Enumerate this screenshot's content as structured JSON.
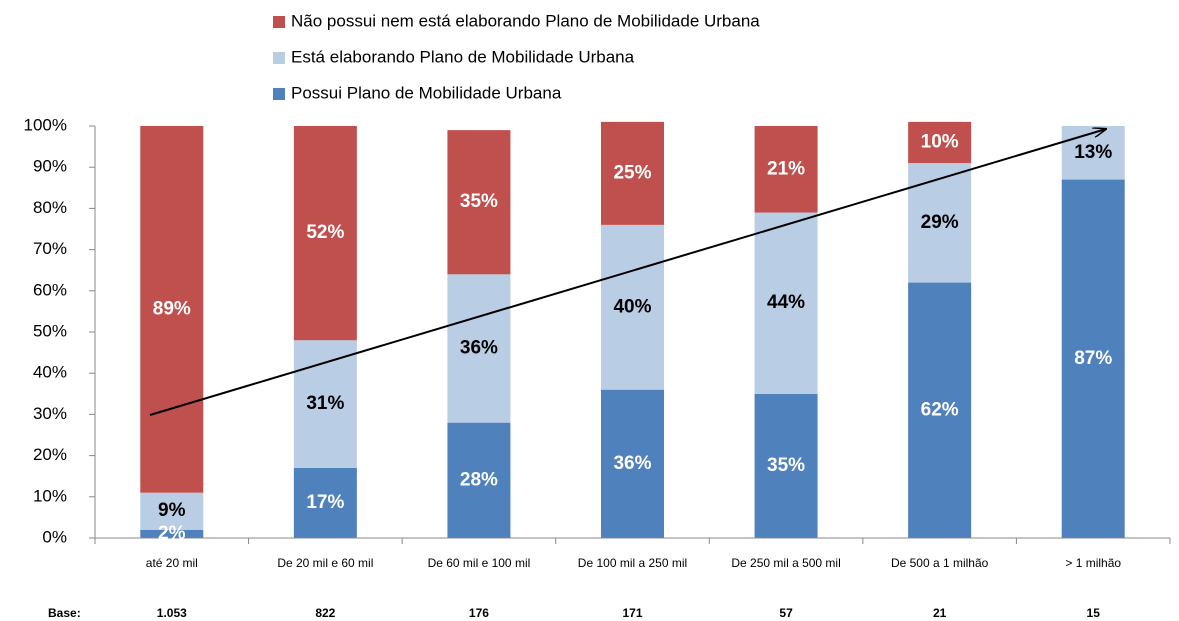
{
  "chart_data": {
    "type": "stacked_bar",
    "categories": [
      "até 20 mil",
      "De 20 mil e 60 mil",
      "De 60 mil e 100 mil",
      "De 100 mil a 250 mil",
      "De 250 mil a 500 mil",
      "De 500 a 1 milhão",
      "> 1 milhão"
    ],
    "series": [
      {
        "name": "Possui Plano de Mobilidade Urbana",
        "color": "#4f81bd",
        "label_color": "#ffffff",
        "values": [
          2,
          17,
          28,
          36,
          35,
          62,
          87
        ],
        "value_labels": [
          "2%",
          "17%",
          "28%",
          "36%",
          "35%",
          "62%",
          "87%"
        ]
      },
      {
        "name": "Está elaborando Plano de Mobilidade Urbana",
        "color": "#b9cde5",
        "label_color": "#000000",
        "values": [
          9,
          31,
          36,
          40,
          44,
          29,
          13
        ],
        "value_labels": [
          "9%",
          "31%",
          "36%",
          "40%",
          "44%",
          "29%",
          "13%"
        ]
      },
      {
        "name": "Não possui nem está elaborando Plano de Mobilidade Urbana",
        "color": "#c0504d",
        "label_color": "#ffffff",
        "values": [
          89,
          52,
          35,
          25,
          21,
          10,
          null
        ],
        "value_labels": [
          "89%",
          "52%",
          "35%",
          "25%",
          "21%",
          "10%",
          null
        ]
      }
    ],
    "ylim": [
      0,
      100
    ],
    "yticks": [
      {
        "value": 0,
        "label": "0%"
      },
      {
        "value": 10,
        "label": "10%"
      },
      {
        "value": 20,
        "label": "20%"
      },
      {
        "value": 30,
        "label": "30%"
      },
      {
        "value": 40,
        "label": "40%"
      },
      {
        "value": 50,
        "label": "50%"
      },
      {
        "value": 60,
        "label": "60%"
      },
      {
        "value": 70,
        "label": "70%"
      },
      {
        "value": 80,
        "label": "80%"
      },
      {
        "value": 90,
        "label": "90%"
      },
      {
        "value": 100,
        "label": "100%"
      }
    ],
    "base": {
      "label": "Base:",
      "values": [
        "1.053",
        "822",
        "176",
        "171",
        "57",
        "21",
        "15"
      ]
    }
  }
}
